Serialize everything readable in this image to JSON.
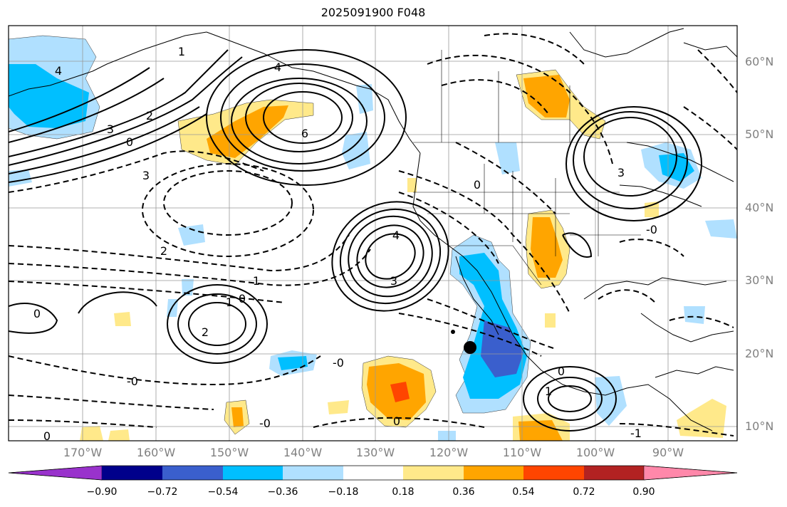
{
  "title": "2025091900 F048",
  "latitude_labels": [
    "60°N",
    "50°N",
    "40°N",
    "30°N",
    "20°N",
    "10°N"
  ],
  "longitude_labels": [
    "170°W",
    "160°W",
    "150°W",
    "140°W",
    "130°W",
    "120°W",
    "110°W",
    "100°W",
    "90°W"
  ],
  "colorbar": {
    "tick_labels": [
      "−0.90",
      "−0.72",
      "−0.54",
      "−0.36",
      "−0.18",
      "0.18",
      "0.36",
      "0.54",
      "0.72",
      "0.90"
    ],
    "colors": [
      "#9932cc",
      "#00008b",
      "#3a5fcd",
      "#00bfff",
      "#b0e0ff",
      "#ffffff",
      "#ffe98a",
      "#ffa500",
      "#ff4500",
      "#b22222",
      "#ff88aa"
    ]
  },
  "contour_labels": [
    "4",
    "3",
    "2",
    "1",
    "0",
    "6",
    "4",
    "3",
    "2",
    "4",
    "3",
    "1",
    "0",
    "-0",
    "2",
    "1",
    "0",
    "-0",
    "-0",
    "0",
    "-0",
    "1",
    "3",
    "0",
    "0",
    "-1",
    "0"
  ]
}
